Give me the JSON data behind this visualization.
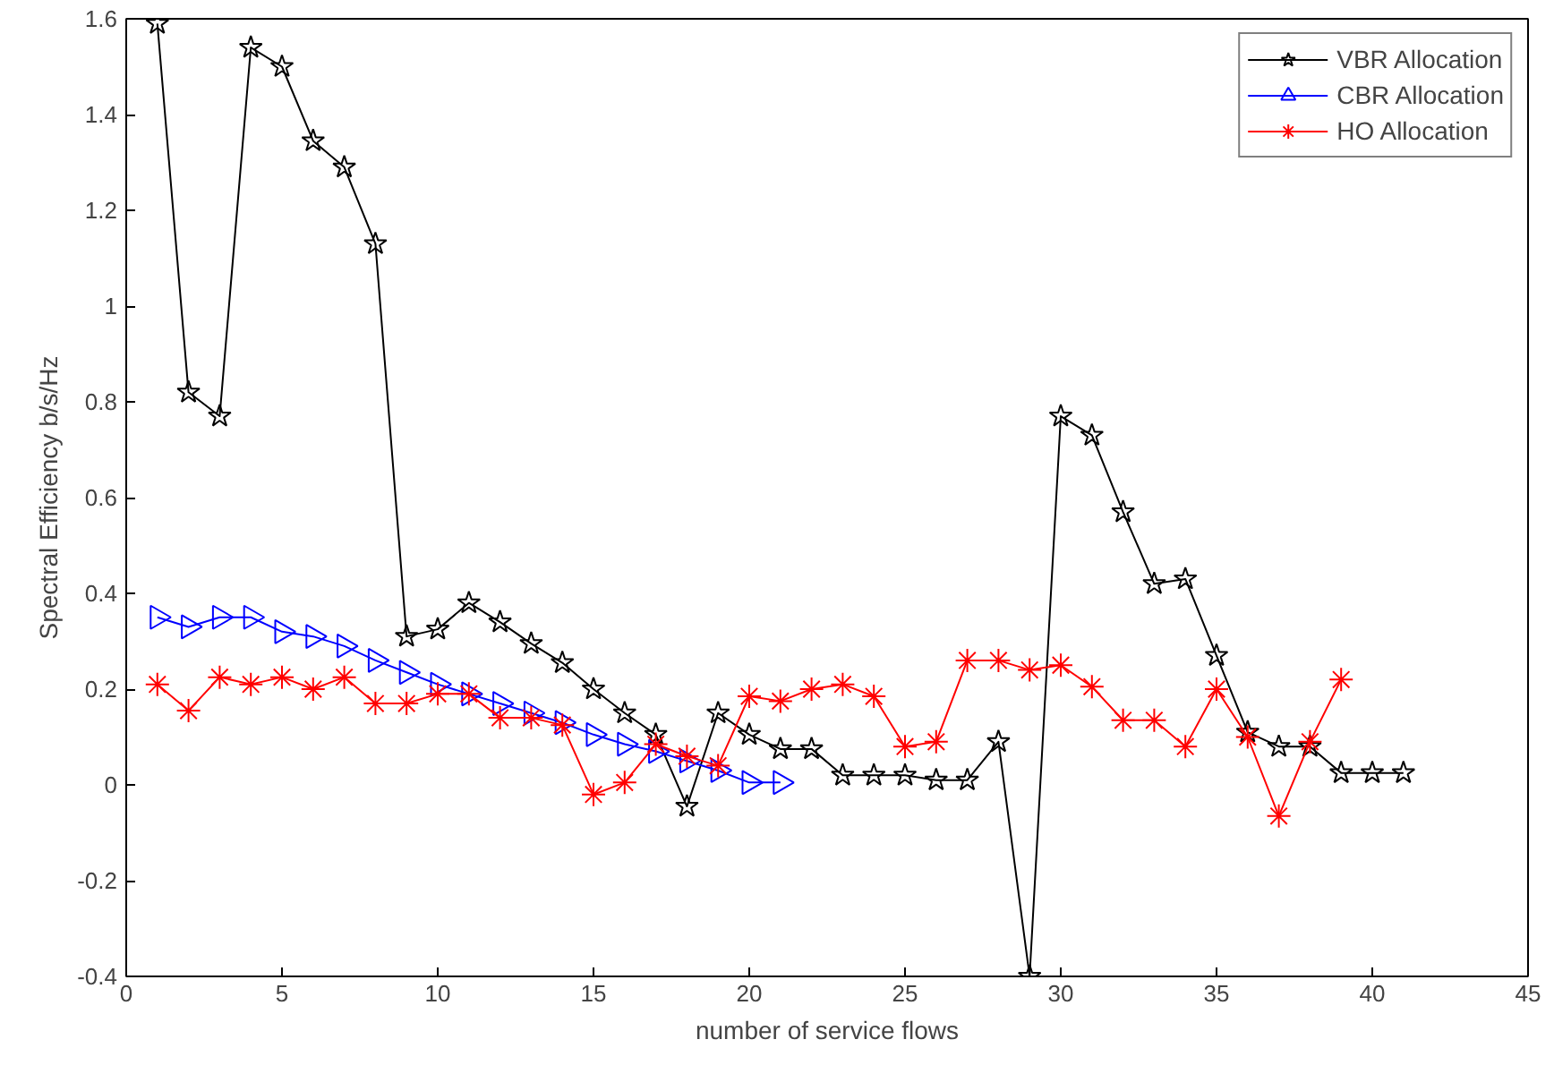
{
  "chart_data": {
    "type": "line",
    "xlabel": "number of service flows",
    "ylabel": "Spectral Efficiency b/s/Hz",
    "xlim": [
      0,
      45
    ],
    "xticks": [
      0,
      5,
      10,
      15,
      20,
      25,
      30,
      35,
      40,
      45
    ],
    "ylim": [
      -0.4,
      1.6
    ],
    "yticks": [
      -0.4,
      -0.2,
      0,
      0.2,
      0.4,
      0.6,
      0.8,
      1,
      1.2,
      1.4,
      1.6
    ],
    "grid": false,
    "legend": "top right",
    "line_style": "solid",
    "series": [
      {
        "name": "VBR Allocation",
        "color": "#000000",
        "marker": "star",
        "x": [
          1,
          2,
          3,
          4,
          5,
          6,
          7,
          8,
          9,
          10,
          11,
          12,
          13,
          14,
          15,
          16,
          17,
          18,
          19,
          20,
          21,
          22,
          23,
          24,
          25,
          26,
          27,
          28,
          29,
          30,
          31,
          32,
          33,
          34,
          35,
          36,
          37,
          38,
          39,
          40,
          41
        ],
        "values": [
          1.59,
          0.82,
          0.77,
          1.54,
          1.5,
          1.345,
          1.29,
          1.13,
          0.31,
          0.325,
          0.38,
          0.34,
          0.295,
          0.255,
          0.2,
          0.15,
          0.105,
          -0.045,
          0.15,
          0.105,
          0.075,
          0.075,
          0.02,
          0.02,
          0.02,
          0.01,
          0.01,
          0.09,
          -0.4,
          0.77,
          0.73,
          0.57,
          0.42,
          0.43,
          0.27,
          0.11,
          0.08,
          0.08,
          0.025,
          0.025,
          0.025
        ]
      },
      {
        "name": "CBR Allocation",
        "color": "#0000ff",
        "marker": "triangle",
        "x": [
          1,
          2,
          3,
          4,
          5,
          6,
          7,
          8,
          9,
          10,
          11,
          12,
          13,
          14,
          15,
          16,
          17,
          18,
          19,
          20,
          21
        ],
        "values": [
          0.35,
          0.33,
          0.35,
          0.35,
          0.32,
          0.31,
          0.29,
          0.26,
          0.235,
          0.21,
          0.19,
          0.17,
          0.15,
          0.13,
          0.105,
          0.085,
          0.07,
          0.05,
          0.03,
          0.005,
          0.005
        ]
      },
      {
        "name": "HO Allocation",
        "color": "#ff0000",
        "marker": "cross",
        "x": [
          1,
          2,
          3,
          4,
          5,
          6,
          7,
          8,
          9,
          10,
          11,
          12,
          13,
          14,
          15,
          16,
          17,
          18,
          19,
          20,
          21,
          22,
          23,
          24,
          25,
          26,
          27,
          28,
          29,
          30,
          31,
          32,
          33,
          34,
          35,
          36,
          37,
          38,
          39
        ],
        "values": [
          0.21,
          0.155,
          0.225,
          0.21,
          0.225,
          0.2,
          0.225,
          0.17,
          0.17,
          0.19,
          0.19,
          0.14,
          0.14,
          0.125,
          -0.02,
          0.005,
          0.085,
          0.06,
          0.04,
          0.185,
          0.175,
          0.2,
          0.21,
          0.185,
          0.08,
          0.09,
          0.26,
          0.26,
          0.24,
          0.25,
          0.205,
          0.135,
          0.135,
          0.08,
          0.2,
          0.1,
          -0.065,
          0.09,
          0.22
        ]
      }
    ]
  }
}
